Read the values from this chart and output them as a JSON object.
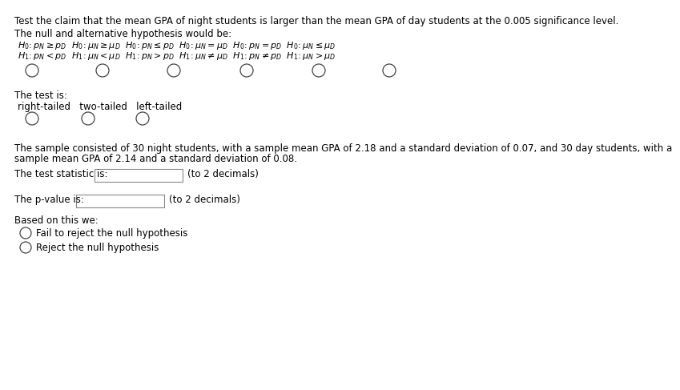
{
  "title_line": "Test the claim that the mean GPA of night students is larger than the mean GPA of day students at the 0.005 significance level.",
  "hyp_header": "The null and alternative hypothesis would be:",
  "test_is": "The test is:",
  "test_options_label": "right-tailed   two-tailed   left-tailed",
  "sample_text1": "The sample consisted of 30 night students, with a sample mean GPA of 2.18 and a standard deviation of 0.07, and 30 day students, with a",
  "sample_text2": "sample mean GPA of 2.14 and a standard deviation of 0.08.",
  "stat_label": "The test statistic is:",
  "stat_hint": "(to 2 decimals)",
  "pval_label": "The p-value is:",
  "pval_hint": "(to 2 decimals)",
  "based_label": "Based on this we:",
  "option1": "Fail to reject the null hypothesis",
  "option2": "Reject the null hypothesis",
  "bg_color": "#ffffff",
  "text_color": "#000000",
  "font_size": 8.5
}
